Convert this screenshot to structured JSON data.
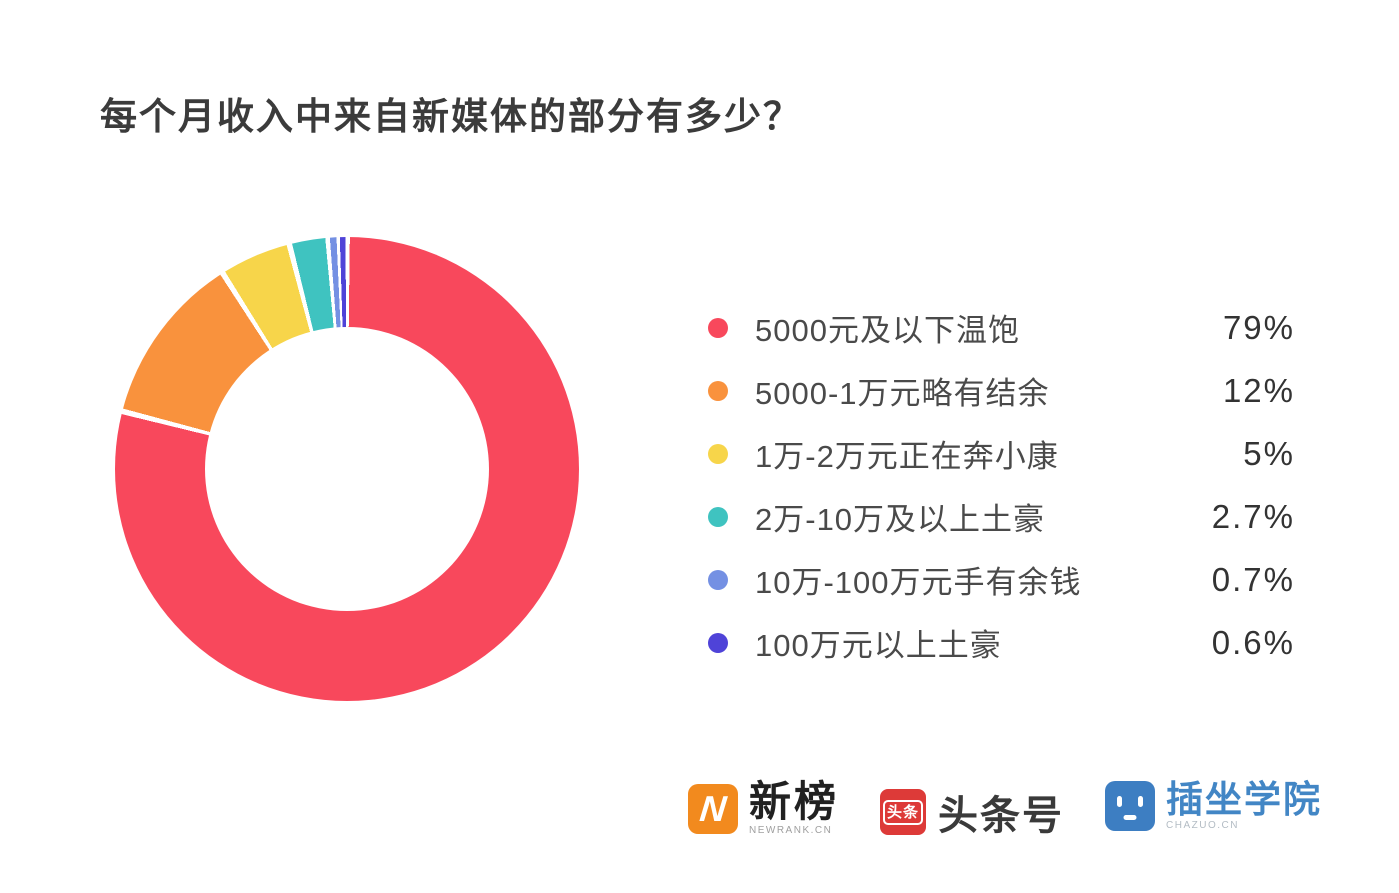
{
  "title": "每个月收入中来自新媒体的部分有多少？",
  "chart_data": {
    "type": "pie",
    "donut": true,
    "title": "每个月收入中来自新媒体的部分有多少？",
    "start_angle_deg": 0,
    "direction": "clockwise",
    "legend_position": "right",
    "background": "#ffffff",
    "series": [
      {
        "label": "5000元及以下温饱",
        "value": 79,
        "display": "79%",
        "color": "#F8485C"
      },
      {
        "label": "5000-1万元略有结余",
        "value": 12,
        "display": "12%",
        "color": "#F9923D"
      },
      {
        "label": "1万-2万元正在奔小康",
        "value": 5,
        "display": "5%",
        "color": "#F7D54A"
      },
      {
        "label": "2万-10万及以上土豪",
        "value": 2.7,
        "display": "2.7%",
        "color": "#3FC3C0"
      },
      {
        "label": "10万-100万元手有余钱",
        "value": 0.7,
        "display": "0.7%",
        "color": "#7490E3"
      },
      {
        "label": "100万元以上土豪",
        "value": 0.6,
        "display": "0.6%",
        "color": "#4F43D8"
      }
    ]
  },
  "footer": {
    "newrank": {
      "name": "新榜",
      "subtext": "NEWRANK.CN",
      "glyph": "N",
      "icon_color": "#F28A1E"
    },
    "toutiao": {
      "name": "头条号",
      "icon_text": "头条",
      "icon_color": "#DD3A38"
    },
    "chazuo": {
      "name": "插坐学院",
      "subtext": "CHAZUO.CN",
      "icon_color": "#3D7EC2"
    }
  }
}
